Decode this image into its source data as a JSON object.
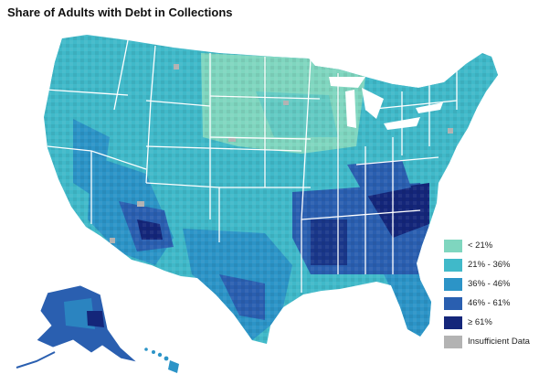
{
  "title": "Share of Adults with Debt in Collections",
  "legend": [
    {
      "label": "< 21%",
      "color": "#7fd6bf"
    },
    {
      "label": "21% - 36%",
      "color": "#40b9c9"
    },
    {
      "label": "36% - 46%",
      "color": "#2c94c7"
    },
    {
      "label": "46% - 61%",
      "color": "#2a5fb0"
    },
    {
      "label": "≥ 61%",
      "color": "#14267a"
    },
    {
      "label": "Insufficient Data",
      "color": "#b3b3b3"
    }
  ],
  "colors": {
    "state_border": "#ffffff",
    "low": "#7fd6bf",
    "mid_low": "#40b9c9",
    "mid": "#2c94c7",
    "mid_high": "#2a5fb0",
    "high": "#14267a",
    "no_data": "#b3b3b3"
  }
}
